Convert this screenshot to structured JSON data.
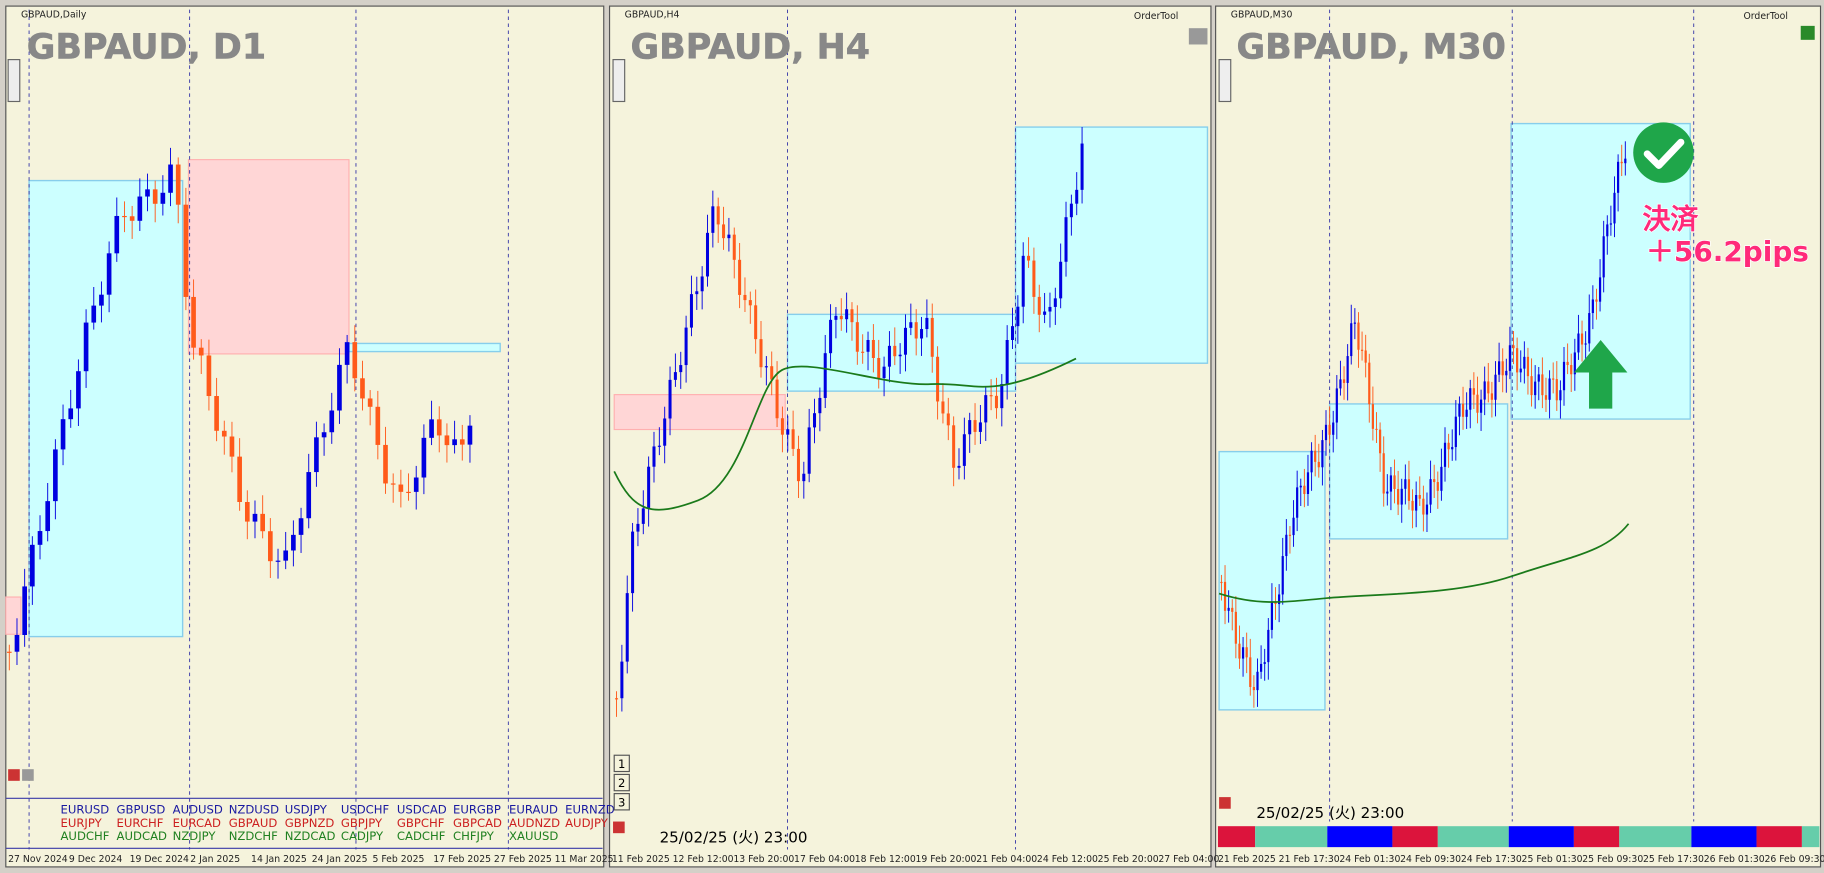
{
  "windows": [
    {
      "tab": "GBPAUD,Daily",
      "title": "GBPAUD, D1",
      "x_labels": [
        "27 Nov 2024",
        "9 Dec 2024",
        "19 Dec 2024",
        "2 Jan 2025",
        "14 Jan 2025",
        "24 Jan 2025",
        "5 Feb 2025",
        "17 Feb 2025",
        "27 Feb 2025",
        "11 Mar 2025"
      ],
      "symbols": [
        [
          "EURUSD",
          "GBPUSD",
          "AUDUSD",
          "NZDUSD",
          "USDJPY",
          "USDCHF",
          "USDCAD",
          "EURGBP",
          "EURAUD",
          "EURNZD"
        ],
        [
          "EURJPY",
          "EURCHF",
          "EURCAD",
          "GBPAUD",
          "GBPNZD",
          "GBPJPY",
          "GBPCHF",
          "GBPCAD",
          "AUDNZD",
          "AUDJPY"
        ],
        [
          "AUDCHF",
          "AUDCAD",
          "NZDJPY",
          "NZDCHF",
          "NZDCAD",
          "CADJPY",
          "CADCHF",
          "CHFJPY",
          "XAUUSD"
        ]
      ]
    },
    {
      "tab": "GBPAUD,H4",
      "title": "GBPAUD, H4",
      "order_tool": "OrderTool",
      "timestamp": "25/02/25 (火) 23:00",
      "buttons": [
        "1",
        "2",
        "3"
      ],
      "x_labels": [
        "11 Feb 2025",
        "12 Feb 12:00",
        "13 Feb 20:00",
        "17 Feb 04:00",
        "18 Feb 12:00",
        "19 Feb 20:00",
        "21 Feb 04:00",
        "24 Feb 12:00",
        "25 Feb 20:00",
        "27 Feb 04:00"
      ]
    },
    {
      "tab": "GBPAUD,M30",
      "title": "GBPAUD, M30",
      "order_tool": "OrderTool",
      "timestamp": "25/02/25 (火) 23:00",
      "annotation": [
        "決済",
        "＋56.2pips"
      ],
      "x_labels": [
        "21 Feb 2025",
        "21 Feb 17:30",
        "24 Feb 01:30",
        "24 Feb 09:30",
        "24 Feb 17:30",
        "25 Feb 01:30",
        "25 Feb 09:30",
        "25 Feb 17:30",
        "26 Feb 01:30",
        "26 Feb 09:30"
      ]
    }
  ]
}
